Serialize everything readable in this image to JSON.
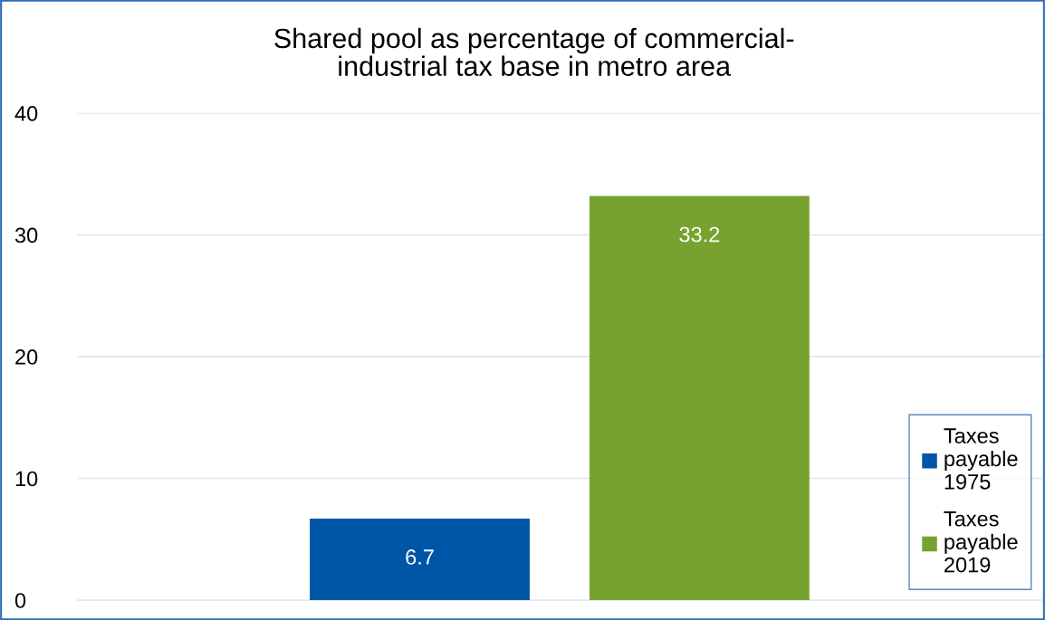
{
  "chart_data": {
    "type": "bar",
    "title": "Shared pool as percentage of commercial-\nindustrial tax base in metro area",
    "categories": [
      null
    ],
    "series": [
      {
        "name": "Taxes payable 1975",
        "color": "#0056a6",
        "values": [
          6.7
        ]
      },
      {
        "name": "Taxes payable 2019",
        "color": "#78a22f",
        "values": [
          33.2
        ]
      }
    ],
    "ylim": [
      0,
      40
    ],
    "yticks": [
      0,
      10,
      20,
      30,
      40
    ],
    "grid": "y",
    "legend": "bottom right",
    "data_labels": true
  }
}
